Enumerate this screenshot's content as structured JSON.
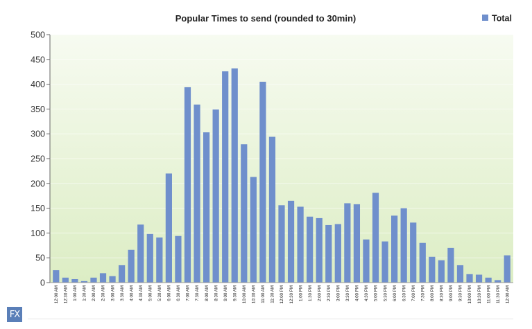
{
  "badge": {
    "label": "FX"
  },
  "colors": {
    "bar": "#6f8fcc",
    "plot_top": "#f7fbf1",
    "plot_bottom": "#dcedc4"
  },
  "chart_data": {
    "type": "bar",
    "title": "Popular Times to send (rounded to 30min)",
    "xlabel": "",
    "ylabel": "",
    "ylim": [
      0,
      500
    ],
    "yticks": [
      0,
      50,
      100,
      150,
      200,
      250,
      300,
      350,
      400,
      450,
      500
    ],
    "grid": true,
    "legend_position": "top-right",
    "categories": [
      "12:00 AM",
      "12:30 AM",
      "1:00 AM",
      "1:30 AM",
      "2:00 AM",
      "2:30 AM",
      "3:00 AM",
      "3:30 AM",
      "4:00 AM",
      "4:30 AM",
      "5:00 AM",
      "5:30 AM",
      "6:00 AM",
      "6:30 AM",
      "7:00 AM",
      "7:30 AM",
      "8:00 AM",
      "8:30 AM",
      "9:00 AM",
      "9:30 AM",
      "10:00 AM",
      "10:30 AM",
      "11:00 AM",
      "11:30 AM",
      "12:00 PM",
      "12:30 PM",
      "1:00 PM",
      "1:30 PM",
      "2:00 PM",
      "2:30 PM",
      "3:00 PM",
      "3:30 PM",
      "4:00 PM",
      "4:30 PM",
      "5:00 PM",
      "5:30 PM",
      "6:00 PM",
      "6:30 PM",
      "7:00 PM",
      "7:30 PM",
      "8:00 PM",
      "8:30 PM",
      "9:00 PM",
      "9:30 PM",
      "10:00 PM",
      "10:30 PM",
      "11:00 PM",
      "11:30 PM",
      "12:00 AM"
    ],
    "series": [
      {
        "name": "Total",
        "values": [
          25,
          10,
          7,
          3,
          10,
          19,
          13,
          35,
          66,
          117,
          98,
          91,
          220,
          94,
          394,
          359,
          303,
          349,
          426,
          432,
          279,
          213,
          405,
          294,
          156,
          165,
          153,
          133,
          130,
          116,
          118,
          160,
          158,
          87,
          181,
          83,
          135,
          150,
          121,
          80,
          52,
          45,
          70,
          35,
          17,
          16,
          10,
          5,
          55
        ]
      }
    ]
  }
}
